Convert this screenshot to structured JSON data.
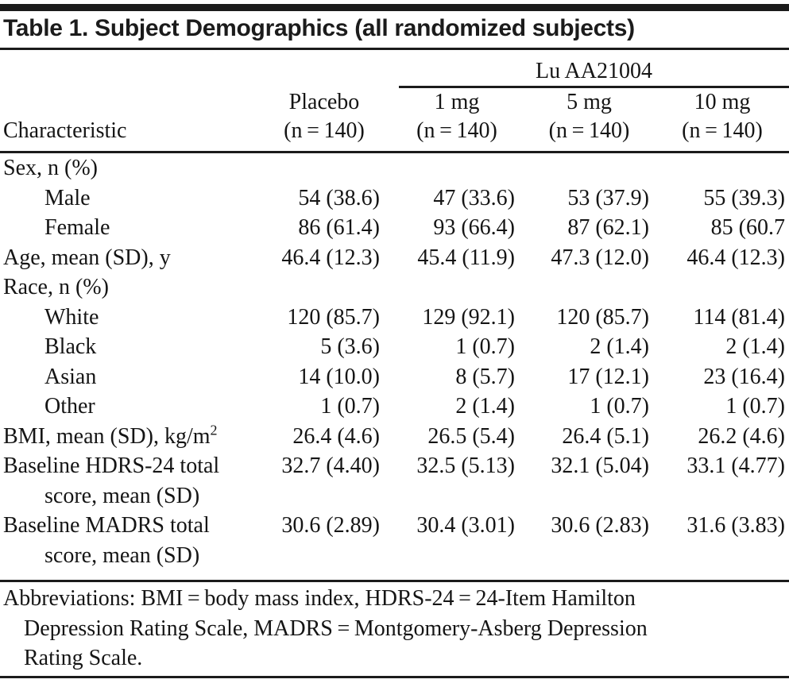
{
  "colors": {
    "text": "#151515",
    "rule": "#1b1b1b",
    "background": "#ffffff"
  },
  "title": "Table 1. Subject Demographics (all randomized subjects)",
  "header": {
    "group_label": "Lu AA21004",
    "characteristic_label": "Characteristic",
    "columns": [
      {
        "name": "Placebo",
        "sub": "(n = 140)"
      },
      {
        "name": "1 mg",
        "sub": "(n = 140)"
      },
      {
        "name": "5 mg",
        "sub": "(n = 140)"
      },
      {
        "name": "10 mg",
        "sub": "(n = 140)"
      }
    ]
  },
  "rows": [
    {
      "label": "Sex, n (%)",
      "indent": 0,
      "values": [
        "",
        "",
        "",
        ""
      ]
    },
    {
      "label": "Male",
      "indent": 1,
      "values": [
        "54 (38.6)",
        "47 (33.6)",
        "53 (37.9)",
        "55 (39.3)"
      ]
    },
    {
      "label": "Female",
      "indent": 1,
      "values": [
        "86 (61.4)",
        "93 (66.4)",
        "87 (62.1)",
        "85 (60.7"
      ]
    },
    {
      "label": "Age, mean (SD), y",
      "indent": 0,
      "values": [
        "46.4 (12.3)",
        "45.4 (11.9)",
        "47.3 (12.0)",
        "46.4 (12.3)"
      ]
    },
    {
      "label": "Race, n (%)",
      "indent": 0,
      "values": [
        "",
        "",
        "",
        ""
      ]
    },
    {
      "label": "White",
      "indent": 1,
      "values": [
        "120 (85.7)",
        "129 (92.1)",
        "120 (85.7)",
        "114 (81.4)"
      ]
    },
    {
      "label": "Black",
      "indent": 1,
      "values": [
        "5 (3.6)",
        "1 (0.7)",
        "2 (1.4)",
        "2 (1.4)"
      ]
    },
    {
      "label": "Asian",
      "indent": 1,
      "values": [
        "14 (10.0)",
        "8 (5.7)",
        "17 (12.1)",
        "23 (16.4)"
      ]
    },
    {
      "label": "Other",
      "indent": 1,
      "values": [
        "1 (0.7)",
        "2 (1.4)",
        "1 (0.7)",
        "1 (0.7)"
      ]
    },
    {
      "label": "BMI, mean (SD), kg/m",
      "sup": "2",
      "indent": 0,
      "values": [
        "26.4 (4.6)",
        "26.5 (5.4)",
        "26.4 (5.1)",
        "26.2 (4.6)"
      ]
    },
    {
      "label": "Baseline HDRS-24 total",
      "label2": "score, mean (SD)",
      "indent": 0,
      "values": [
        "32.7 (4.40)",
        "32.5 (5.13)",
        "32.1 (5.04)",
        "33.1 (4.77)"
      ]
    },
    {
      "label": "Baseline MADRS total",
      "label2": "score, mean (SD)",
      "indent": 0,
      "values": [
        "30.6 (2.89)",
        "30.4 (3.01)",
        "30.6 (2.83)",
        "31.6 (3.83)"
      ]
    }
  ],
  "footnote_lines": [
    "Abbreviations: BMI = body mass index, HDRS-24 = 24-Item Hamilton",
    "Depression Rating Scale, MADRS = Montgomery-Asberg Depression",
    "Rating Scale."
  ]
}
